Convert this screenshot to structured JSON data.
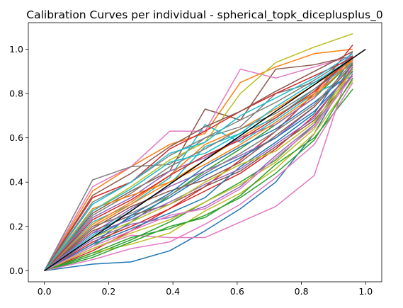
{
  "chart_data": {
    "type": "line",
    "title": "Calibration Curves per individual - spherical_topk_diceplusplus_0",
    "xlabel": "",
    "ylabel": "",
    "xlim": [
      -0.05,
      1.05
    ],
    "ylim": [
      -0.05,
      1.12
    ],
    "x_ticks": [
      "0.0",
      "0.2",
      "0.4",
      "0.6",
      "0.8",
      "1.0"
    ],
    "y_ticks": [
      "0.0",
      "0.2",
      "0.4",
      "0.6",
      "0.8",
      "1.0"
    ],
    "grid": false,
    "legend": "none",
    "x": [
      0.0,
      0.15,
      0.27,
      0.39,
      0.5,
      0.61,
      0.72,
      0.84,
      0.96
    ],
    "reference_line": {
      "x": [
        0.0,
        1.0
      ],
      "y": [
        0.0,
        1.0
      ],
      "color": "#000000"
    },
    "palette": [
      "#1f77b4",
      "#ff7f0e",
      "#2ca02c",
      "#d62728",
      "#9467bd",
      "#8c564b",
      "#e377c2",
      "#7f7f7f",
      "#bcbd22",
      "#17becf"
    ],
    "series": [
      {
        "values": [
          0,
          0.03,
          0.04,
          0.09,
          0.18,
          0.28,
          0.4,
          0.62,
          0.92
        ]
      },
      {
        "values": [
          0,
          0.36,
          0.47,
          0.57,
          0.62,
          0.85,
          0.92,
          0.98,
          1.0
        ]
      },
      {
        "values": [
          0,
          0.11,
          0.22,
          0.34,
          0.45,
          0.55,
          0.66,
          0.78,
          0.95
        ]
      },
      {
        "values": [
          0,
          0.09,
          0.18,
          0.28,
          0.38,
          0.5,
          0.63,
          0.8,
          1.02
        ]
      },
      {
        "values": [
          0,
          0.17,
          0.28,
          0.38,
          0.45,
          0.52,
          0.6,
          0.74,
          0.93
        ]
      },
      {
        "values": [
          0,
          0.26,
          0.36,
          0.45,
          0.73,
          0.68,
          0.91,
          0.93,
          0.97
        ]
      },
      {
        "values": [
          0,
          0.38,
          0.47,
          0.63,
          0.63,
          0.91,
          0.87,
          0.92,
          0.97
        ]
      },
      {
        "values": [
          0,
          0.41,
          0.47,
          0.48,
          0.6,
          0.65,
          0.8,
          0.85,
          0.93
        ]
      },
      {
        "values": [
          0,
          0.27,
          0.38,
          0.5,
          0.58,
          0.8,
          0.94,
          1.01,
          1.07
        ]
      },
      {
        "values": [
          0,
          0.22,
          0.3,
          0.42,
          0.66,
          0.58,
          0.68,
          0.8,
          0.88
        ]
      },
      {
        "values": [
          0,
          0.15,
          0.24,
          0.33,
          0.43,
          0.51,
          0.6,
          0.72,
          0.9
        ]
      },
      {
        "values": [
          0,
          0.2,
          0.3,
          0.4,
          0.5,
          0.6,
          0.7,
          0.8,
          0.96
        ]
      },
      {
        "values": [
          0,
          0.07,
          0.14,
          0.22,
          0.31,
          0.4,
          0.5,
          0.66,
          0.94
        ]
      },
      {
        "values": [
          0,
          0.13,
          0.2,
          0.28,
          0.36,
          0.44,
          0.55,
          0.7,
          0.91
        ]
      },
      {
        "values": [
          0,
          0.24,
          0.33,
          0.45,
          0.51,
          0.6,
          0.66,
          0.78,
          0.99
        ]
      },
      {
        "values": [
          0,
          0.18,
          0.25,
          0.3,
          0.38,
          0.45,
          0.56,
          0.68,
          0.88
        ]
      },
      {
        "values": [
          0,
          0.1,
          0.16,
          0.15,
          0.15,
          0.22,
          0.29,
          0.43,
          0.96
        ]
      },
      {
        "values": [
          0,
          0.31,
          0.4,
          0.52,
          0.6,
          0.68,
          0.76,
          0.86,
          0.97
        ]
      },
      {
        "values": [
          0,
          0.08,
          0.12,
          0.17,
          0.27,
          0.35,
          0.46,
          0.62,
          0.86
        ]
      },
      {
        "values": [
          0,
          0.16,
          0.27,
          0.39,
          0.56,
          0.62,
          0.69,
          0.82,
          0.94
        ]
      },
      {
        "values": [
          0,
          0.12,
          0.19,
          0.26,
          0.33,
          0.47,
          0.58,
          0.71,
          0.97
        ]
      },
      {
        "values": [
          0,
          0.21,
          0.31,
          0.43,
          0.57,
          0.64,
          0.73,
          0.84,
          0.95
        ]
      },
      {
        "values": [
          0,
          0.06,
          0.13,
          0.2,
          0.24,
          0.34,
          0.48,
          0.6,
          0.82
        ]
      },
      {
        "values": [
          0,
          0.33,
          0.4,
          0.55,
          0.63,
          0.72,
          0.8,
          0.88,
          0.96
        ]
      },
      {
        "values": [
          0,
          0.14,
          0.21,
          0.24,
          0.29,
          0.38,
          0.52,
          0.66,
          0.89
        ]
      },
      {
        "values": [
          0,
          0.19,
          0.29,
          0.36,
          0.41,
          0.49,
          0.61,
          0.74,
          0.93
        ]
      },
      {
        "values": [
          0,
          0.05,
          0.1,
          0.13,
          0.21,
          0.3,
          0.42,
          0.57,
          0.85
        ]
      },
      {
        "values": [
          0,
          0.25,
          0.35,
          0.47,
          0.55,
          0.64,
          0.71,
          0.82,
          0.96
        ]
      },
      {
        "values": [
          0,
          0.1,
          0.17,
          0.23,
          0.31,
          0.39,
          0.49,
          0.64,
          0.91
        ]
      },
      {
        "values": [
          0,
          0.3,
          0.4,
          0.53,
          0.58,
          0.7,
          0.78,
          0.87,
          0.98
        ]
      },
      {
        "values": [
          0,
          0.12,
          0.25,
          0.35,
          0.47,
          0.56,
          0.64,
          0.76,
          0.9
        ]
      },
      {
        "values": [
          0,
          0.28,
          0.34,
          0.4,
          0.48,
          0.57,
          0.67,
          0.79,
          0.95
        ]
      },
      {
        "values": [
          0,
          0.08,
          0.15,
          0.19,
          0.25,
          0.33,
          0.44,
          0.59,
          0.87
        ]
      },
      {
        "values": [
          0,
          0.23,
          0.32,
          0.43,
          0.52,
          0.59,
          0.69,
          0.81,
          0.97
        ]
      },
      {
        "values": [
          0,
          0.17,
          0.23,
          0.31,
          0.39,
          0.46,
          0.57,
          0.69,
          0.92
        ]
      },
      {
        "values": [
          0,
          0.34,
          0.44,
          0.56,
          0.65,
          0.72,
          0.81,
          0.9,
          0.99
        ]
      },
      {
        "values": [
          0,
          0.11,
          0.18,
          0.25,
          0.28,
          0.37,
          0.51,
          0.65,
          0.88
        ]
      },
      {
        "values": [
          0,
          0.2,
          0.26,
          0.34,
          0.44,
          0.53,
          0.63,
          0.75,
          0.94
        ]
      },
      {
        "values": [
          0,
          0.15,
          0.22,
          0.3,
          0.4,
          0.48,
          0.54,
          0.67,
          0.91
        ]
      },
      {
        "values": [
          0,
          0.27,
          0.37,
          0.49,
          0.53,
          0.62,
          0.74,
          0.85,
          0.96
        ]
      }
    ]
  }
}
